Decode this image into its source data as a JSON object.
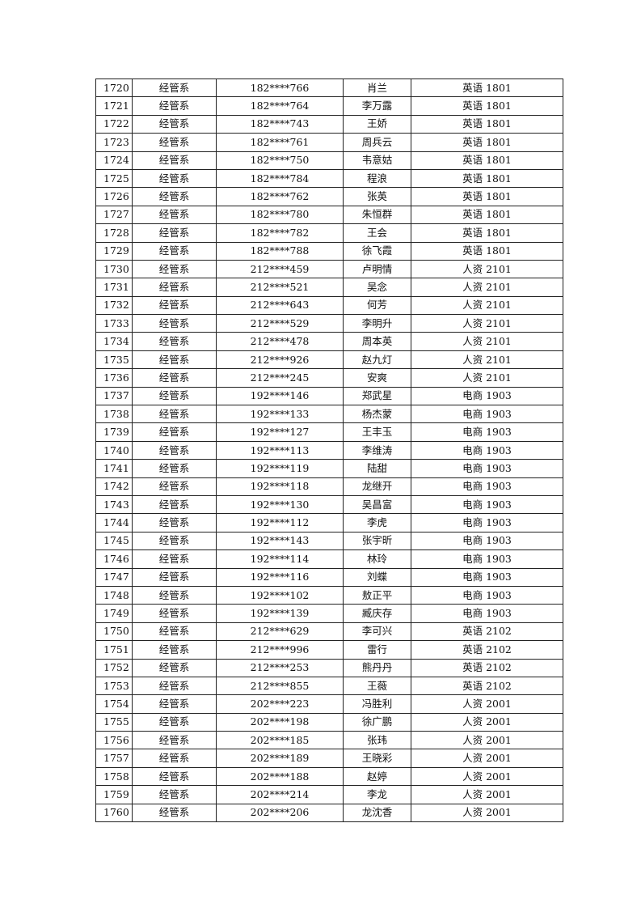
{
  "table": {
    "rows": [
      [
        "1720",
        "经管系",
        "182****766",
        "肖兰",
        "英语 1801"
      ],
      [
        "1721",
        "经管系",
        "182****764",
        "李万露",
        "英语 1801"
      ],
      [
        "1722",
        "经管系",
        "182****743",
        "王娇",
        "英语 1801"
      ],
      [
        "1723",
        "经管系",
        "182****761",
        "周兵云",
        "英语 1801"
      ],
      [
        "1724",
        "经管系",
        "182****750",
        "韦意姑",
        "英语 1801"
      ],
      [
        "1725",
        "经管系",
        "182****784",
        "程浪",
        "英语 1801"
      ],
      [
        "1726",
        "经管系",
        "182****762",
        "张英",
        "英语 1801"
      ],
      [
        "1727",
        "经管系",
        "182****780",
        "朱恒群",
        "英语 1801"
      ],
      [
        "1728",
        "经管系",
        "182****782",
        "王会",
        "英语 1801"
      ],
      [
        "1729",
        "经管系",
        "182****788",
        "徐飞霞",
        "英语 1801"
      ],
      [
        "1730",
        "经管系",
        "212****459",
        "卢明情",
        "人资 2101"
      ],
      [
        "1731",
        "经管系",
        "212****521",
        "吴念",
        "人资 2101"
      ],
      [
        "1732",
        "经管系",
        "212****643",
        "何芳",
        "人资 2101"
      ],
      [
        "1733",
        "经管系",
        "212****529",
        "李明升",
        "人资 2101"
      ],
      [
        "1734",
        "经管系",
        "212****478",
        "周本英",
        "人资 2101"
      ],
      [
        "1735",
        "经管系",
        "212****926",
        "赵九灯",
        "人资 2101"
      ],
      [
        "1736",
        "经管系",
        "212****245",
        "安爽",
        "人资 2101"
      ],
      [
        "1737",
        "经管系",
        "192****146",
        "郑武星",
        "电商 1903"
      ],
      [
        "1738",
        "经管系",
        "192****133",
        "杨杰蒙",
        "电商 1903"
      ],
      [
        "1739",
        "经管系",
        "192****127",
        "王丰玉",
        "电商 1903"
      ],
      [
        "1740",
        "经管系",
        "192****113",
        "李维涛",
        "电商 1903"
      ],
      [
        "1741",
        "经管系",
        "192****119",
        "陆甜",
        "电商 1903"
      ],
      [
        "1742",
        "经管系",
        "192****118",
        "龙继开",
        "电商 1903"
      ],
      [
        "1743",
        "经管系",
        "192****130",
        "吴昌富",
        "电商 1903"
      ],
      [
        "1744",
        "经管系",
        "192****112",
        "李虎",
        "电商 1903"
      ],
      [
        "1745",
        "经管系",
        "192****143",
        "张宇昕",
        "电商 1903"
      ],
      [
        "1746",
        "经管系",
        "192****114",
        "林玲",
        "电商 1903"
      ],
      [
        "1747",
        "经管系",
        "192****116",
        "刘蝶",
        "电商 1903"
      ],
      [
        "1748",
        "经管系",
        "192****102",
        "敖正平",
        "电商 1903"
      ],
      [
        "1749",
        "经管系",
        "192****139",
        "臧庆存",
        "电商 1903"
      ],
      [
        "1750",
        "经管系",
        "212****629",
        "李可兴",
        "英语 2102"
      ],
      [
        "1751",
        "经管系",
        "212****996",
        "雷行",
        "英语 2102"
      ],
      [
        "1752",
        "经管系",
        "212****253",
        "熊丹丹",
        "英语 2102"
      ],
      [
        "1753",
        "经管系",
        "212****855",
        "王薇",
        "英语 2102"
      ],
      [
        "1754",
        "经管系",
        "202****223",
        "冯胜利",
        "人资 2001"
      ],
      [
        "1755",
        "经管系",
        "202****198",
        "徐广鹏",
        "人资 2001"
      ],
      [
        "1756",
        "经管系",
        "202****185",
        "张玮",
        "人资 2001"
      ],
      [
        "1757",
        "经管系",
        "202****189",
        "王晓彩",
        "人资 2001"
      ],
      [
        "1758",
        "经管系",
        "202****188",
        "赵婷",
        "人资 2001"
      ],
      [
        "1759",
        "经管系",
        "202****214",
        "李龙",
        "人资 2001"
      ],
      [
        "1760",
        "经管系",
        "202****206",
        "龙沈香",
        "人资 2001"
      ]
    ]
  }
}
